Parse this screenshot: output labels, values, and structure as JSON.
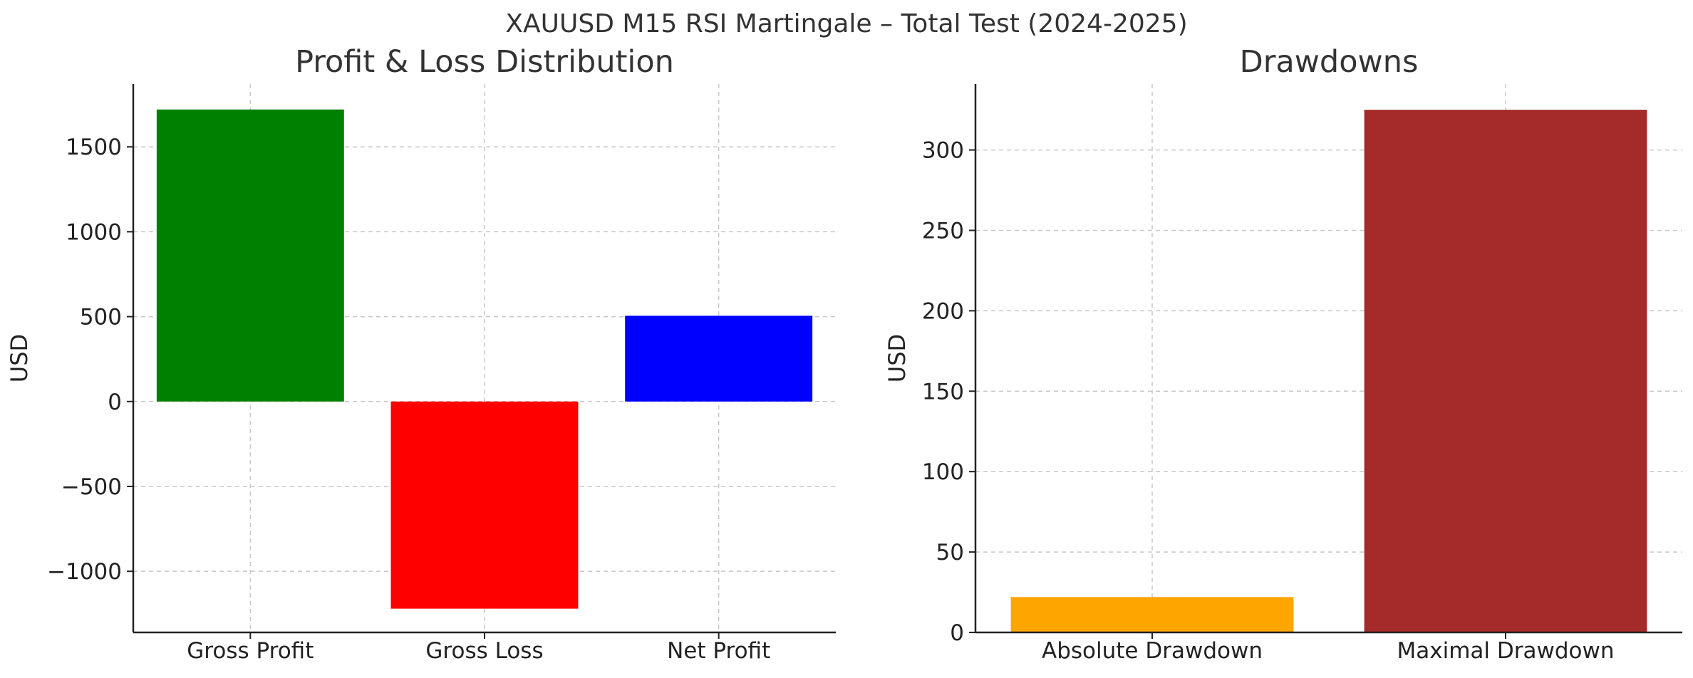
{
  "figure": {
    "suptitle": "XAUUSD M15 RSI Martingale – Total Test (2024-2025)"
  },
  "chart_data": [
    {
      "type": "bar",
      "title": "Profit & Loss Distribution",
      "xlabel": "",
      "ylabel": "USD",
      "categories": [
        "Gross Profit",
        "Gross Loss",
        "Net Profit"
      ],
      "values": [
        1720,
        -1220,
        505
      ],
      "colors": [
        "#008000",
        "#ff0000",
        "#0000ff"
      ],
      "ylim": [
        -1360,
        1870
      ],
      "yticks": [
        -1000,
        -500,
        0,
        500,
        1000,
        1500
      ],
      "ytick_labels": [
        "−1000",
        "−500",
        "0",
        "500",
        "1000",
        "1500"
      ],
      "grid": true
    },
    {
      "type": "bar",
      "title": "Drawdowns",
      "xlabel": "",
      "ylabel": "USD",
      "categories": [
        "Absolute Drawdown",
        "Maximal Drawdown"
      ],
      "values": [
        22,
        325
      ],
      "colors": [
        "#ffa500",
        "#a52a2a"
      ],
      "ylim": [
        0,
        341
      ],
      "yticks": [
        0,
        50,
        100,
        150,
        200,
        250,
        300
      ],
      "ytick_labels": [
        "0",
        "50",
        "100",
        "150",
        "200",
        "250",
        "300"
      ],
      "grid": true
    }
  ]
}
